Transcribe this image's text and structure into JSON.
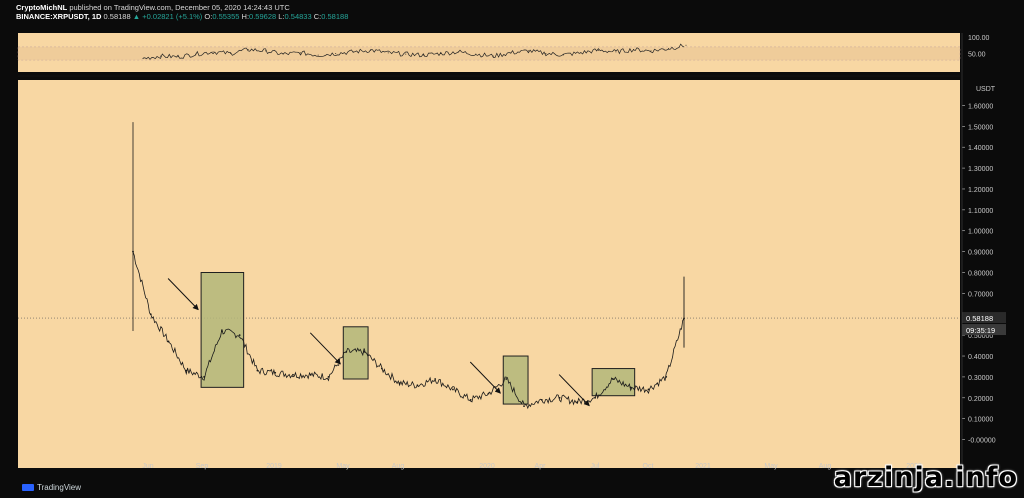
{
  "header": {
    "author": "CryptoMichNL",
    "published": "published on TradingView.com, December 05, 2020 14:24:43 UTC",
    "symbol": "BINANCE:XRPUSDT, 1D",
    "last": "0.58188",
    "change": "▲ +0.02821 (+5.1%)",
    "open_label": "O:",
    "open": "0.55355",
    "high_label": "H:",
    "high": "0.59628",
    "low_label": "L:",
    "low": "0.54833",
    "close_label": "C:",
    "close": "0.58188"
  },
  "footer": {
    "logo_text": "TradingView"
  },
  "watermark": "arzinja.info",
  "price_scale": {
    "currency": "USDT",
    "current_price": "0.58188",
    "countdown": "09:35:19"
  },
  "colors": {
    "background": "#f8d7a3",
    "candles": "#1a1a1a",
    "box_fill": "#b3b77a",
    "box_stroke": "#1f1f1f",
    "rsi_band": "#efcc9a",
    "axis_text": "#c8c8c8",
    "price_label_bg": "#2a2a2a"
  },
  "chart_data": [
    {
      "type": "line",
      "name": "price",
      "ylabel": "USDT",
      "ylim": [
        -0.05,
        1.65
      ],
      "yticks": [
        "-0.00000",
        "0.10000",
        "0.20000",
        "0.30000",
        "0.40000",
        "0.50000",
        "0.60000",
        "0.70000",
        "0.80000",
        "0.90000",
        "1.00000",
        "1.10000",
        "1.20000",
        "1.30000",
        "1.40000",
        "1.50000",
        "1.60000"
      ],
      "xticks": [
        "Jun",
        "Sep",
        "2019",
        "May",
        "Aug",
        "2020",
        "Apr",
        "Jul",
        "Oct",
        "2021",
        "May",
        "Aug",
        "2022"
      ],
      "x": [
        "2018-05",
        "2018-06",
        "2018-07",
        "2018-08",
        "2018-09",
        "2018-10",
        "2018-11",
        "2018-12",
        "2019-01",
        "2019-02",
        "2019-03",
        "2019-04",
        "2019-05",
        "2019-06",
        "2019-07",
        "2019-08",
        "2019-09",
        "2019-10",
        "2019-11",
        "2019-12",
        "2020-01",
        "2020-02",
        "2020-03",
        "2020-04",
        "2020-05",
        "2020-06",
        "2020-07",
        "2020-08",
        "2020-09",
        "2020-10",
        "2020-11",
        "2020-12"
      ],
      "values": [
        0.9,
        0.6,
        0.47,
        0.33,
        0.3,
        0.52,
        0.5,
        0.33,
        0.32,
        0.31,
        0.31,
        0.3,
        0.42,
        0.42,
        0.34,
        0.27,
        0.26,
        0.29,
        0.24,
        0.19,
        0.22,
        0.29,
        0.16,
        0.19,
        0.2,
        0.18,
        0.2,
        0.29,
        0.25,
        0.24,
        0.3,
        0.58
      ],
      "annotations": [
        {
          "type": "box",
          "from": "2018-09",
          "to": "2018-11",
          "ylim": [
            0.25,
            0.8
          ]
        },
        {
          "type": "box",
          "from": "2019-05",
          "to": "2019-06",
          "ylim": [
            0.29,
            0.54
          ]
        },
        {
          "type": "box",
          "from": "2020-02",
          "to": "2020-03",
          "ylim": [
            0.17,
            0.4
          ]
        },
        {
          "type": "box",
          "from": "2020-07",
          "to": "2020-09",
          "ylim": [
            0.21,
            0.34
          ]
        }
      ],
      "arrows": 4
    },
    {
      "type": "line",
      "name": "oscillator",
      "ylim": [
        0,
        100
      ],
      "yticks": [
        "100.00",
        "50.00"
      ],
      "band": [
        30,
        70
      ],
      "values": [
        35,
        42,
        40,
        48,
        55,
        50,
        62,
        58,
        48,
        52,
        45,
        50,
        55,
        60,
        52,
        48,
        45,
        50,
        55,
        48,
        42,
        52,
        58,
        50,
        46,
        52,
        60,
        55,
        62,
        58,
        65,
        75
      ]
    }
  ]
}
